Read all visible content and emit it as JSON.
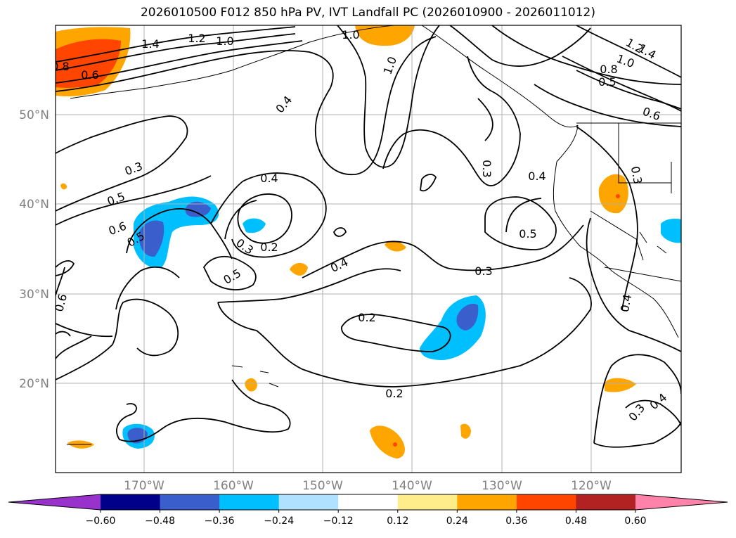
{
  "title": "2026010500 F012 850 hPa PV, IVT Landfall PC (2026010900 - 2026011012)",
  "lat_ticks": [
    "50°N",
    "40°N",
    "30°N",
    "20°N"
  ],
  "lon_ticks": [
    "170°W",
    "160°W",
    "150°W",
    "140°W",
    "130°W",
    "120°W"
  ],
  "colorbar": {
    "ticks": [
      "−0.60",
      "−0.48",
      "−0.36",
      "−0.24",
      "−0.12",
      "0.12",
      "0.24",
      "0.36",
      "0.48",
      "0.60"
    ],
    "colors": [
      "#9932cc",
      "#00008b",
      "#3a5fcd",
      "#00bfff",
      "#b0e2ff",
      "#ffffff",
      "#ffec8b",
      "#ffa500",
      "#ff4500",
      "#b22222",
      "#ff82ab"
    ]
  },
  "contour_labels": [
    "1.4",
    "1.2",
    "1.0",
    "0.8",
    "0.6",
    "1.0",
    "1.0",
    "1.4",
    "1.2",
    "1.0",
    "0.8",
    "0.5",
    "0.6",
    "0.4",
    "0.3",
    "0.5",
    "0.6",
    "0.5",
    "0.4",
    "0.3",
    "0.2",
    "0.5",
    "0.4",
    "0.3",
    "0.3",
    "0.4",
    "0.5",
    "0.3",
    "0.2",
    "0.2",
    "0.6",
    "0.4",
    "0.3",
    "0.4"
  ]
}
